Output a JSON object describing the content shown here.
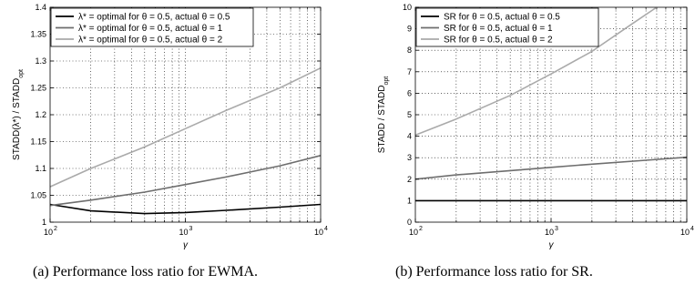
{
  "chart_data": [
    {
      "type": "line",
      "xscale": "log",
      "xlim": [
        100,
        10000
      ],
      "ylim": [
        1,
        1.4
      ],
      "x_ticks": [
        100,
        1000,
        10000
      ],
      "x_tick_labels": [
        "10",
        "10",
        "10"
      ],
      "x_tick_exponents": [
        "2",
        "3",
        "4"
      ],
      "y_ticks": [
        1,
        1.05,
        1.1,
        1.15,
        1.2,
        1.25,
        1.3,
        1.35,
        1.4
      ],
      "y_tick_labels": [
        "1",
        "1.05",
        "1.1",
        "1.15",
        "1.2",
        "1.25",
        "1.3",
        "1.35",
        "1.4"
      ],
      "xlabel": "γ",
      "ylabel": "STADD(λ*) / STADD_opt",
      "grid": true,
      "legend_position": "top-left",
      "caption": "(a)  Performance loss ratio for EWMA.",
      "series": [
        {
          "name": "λ* = optimal for θ = 0.5, actual θ = 0.5",
          "color": "#000000",
          "x": [
            100,
            200,
            500,
            1000,
            2000,
            5000,
            10000
          ],
          "y": [
            1.033,
            1.021,
            1.016,
            1.018,
            1.022,
            1.028,
            1.033
          ]
        },
        {
          "name": "λ* = optimal for θ = 0.5, actual θ = 1",
          "color": "#6e6e6e",
          "x": [
            100,
            200,
            500,
            1000,
            2000,
            5000,
            10000
          ],
          "y": [
            1.031,
            1.041,
            1.056,
            1.07,
            1.084,
            1.105,
            1.124
          ]
        },
        {
          "name": "λ* = optimal for θ = 0.5, actual θ = 2",
          "color": "#aaaaaa",
          "x": [
            100,
            200,
            500,
            1000,
            2000,
            5000,
            10000
          ],
          "y": [
            1.066,
            1.1,
            1.14,
            1.174,
            1.208,
            1.25,
            1.287
          ]
        }
      ]
    },
    {
      "type": "line",
      "xscale": "log",
      "xlim": [
        100,
        10000
      ],
      "ylim": [
        0,
        10
      ],
      "x_ticks": [
        100,
        1000,
        10000
      ],
      "x_tick_labels": [
        "10",
        "10",
        "10"
      ],
      "x_tick_exponents": [
        "2",
        "3",
        "4"
      ],
      "y_ticks": [
        0,
        1,
        2,
        3,
        4,
        5,
        6,
        7,
        8,
        9,
        10
      ],
      "y_tick_labels": [
        "0",
        "1",
        "2",
        "3",
        "4",
        "5",
        "6",
        "7",
        "8",
        "9",
        "10"
      ],
      "xlabel": "γ",
      "ylabel": "STADD / STADD_opt",
      "grid": true,
      "legend_position": "top-left",
      "caption": "(b)  Performance loss ratio for SR.",
      "series": [
        {
          "name": "SR for θ = 0.5, actual θ = 0.5",
          "color": "#000000",
          "x": [
            100,
            10000
          ],
          "y": [
            1.0,
            1.0
          ]
        },
        {
          "name": "SR for θ = 0.5, actual θ = 1",
          "color": "#6e6e6e",
          "x": [
            100,
            200,
            500,
            1000,
            2000,
            5000,
            10000
          ],
          "y": [
            2.0,
            2.2,
            2.4,
            2.55,
            2.7,
            2.88,
            3.02
          ]
        },
        {
          "name": "SR for θ = 0.5, actual θ = 2",
          "color": "#aaaaaa",
          "x": [
            100,
            200,
            500,
            1000,
            2000,
            4000,
            6000
          ],
          "y": [
            4.05,
            4.8,
            5.9,
            6.9,
            7.95,
            9.25,
            10.0
          ]
        }
      ]
    }
  ]
}
